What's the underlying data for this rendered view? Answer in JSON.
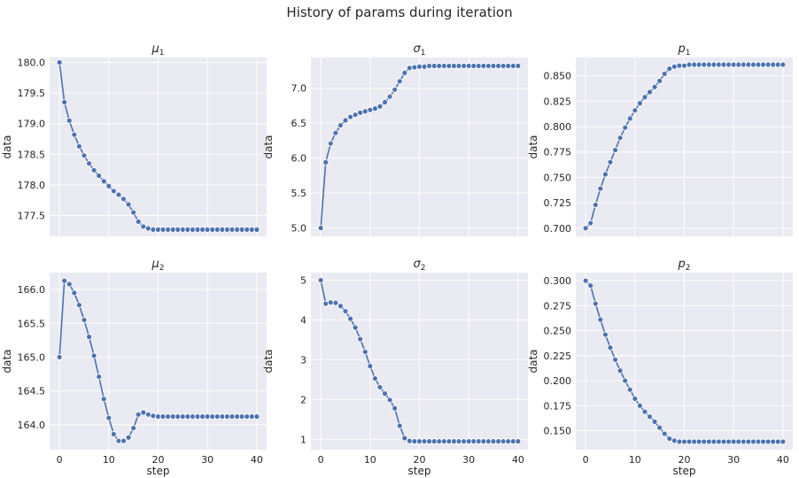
{
  "figure_title": "History of params during iteration",
  "chart_data": [
    {
      "type": "line",
      "title": "μ1",
      "title_base": "μ",
      "title_sub": "1",
      "xlabel": "",
      "ylabel": "data",
      "xlim": [
        -2,
        42
      ],
      "ylim": [
        177.16,
        180.08
      ],
      "xticks": [
        0,
        10,
        20,
        30,
        40
      ],
      "xticklabels_visible": false,
      "yticks": [
        177.5,
        178.0,
        178.5,
        179.0,
        179.5,
        180.0
      ],
      "yticklabels": [
        "177.5",
        "178.0",
        "178.5",
        "179.0",
        "179.5",
        "180.0"
      ],
      "color": "#4c72b0",
      "x": [
        0,
        1,
        2,
        3,
        4,
        5,
        6,
        7,
        8,
        9,
        10,
        11,
        12,
        13,
        14,
        15,
        16,
        17,
        18,
        19,
        20,
        21,
        22,
        23,
        24,
        25,
        26,
        27,
        28,
        29,
        30,
        31,
        32,
        33,
        34,
        35,
        36,
        37,
        38,
        39,
        40
      ],
      "values": [
        180.0,
        179.35,
        179.05,
        178.82,
        178.63,
        178.48,
        178.35,
        178.24,
        178.15,
        178.06,
        177.98,
        177.9,
        177.84,
        177.77,
        177.68,
        177.55,
        177.4,
        177.32,
        177.29,
        177.27,
        177.27,
        177.27,
        177.27,
        177.27,
        177.27,
        177.27,
        177.27,
        177.27,
        177.27,
        177.27,
        177.27,
        177.27,
        177.27,
        177.27,
        177.27,
        177.27,
        177.27,
        177.27,
        177.27,
        177.27,
        177.27
      ]
    },
    {
      "type": "line",
      "title": "σ1",
      "title_base": "σ",
      "title_sub": "1",
      "xlabel": "",
      "ylabel": "data",
      "xlim": [
        -2,
        42
      ],
      "ylim": [
        4.88,
        7.44
      ],
      "xticks": [
        0,
        10,
        20,
        30,
        40
      ],
      "xticklabels_visible": false,
      "yticks": [
        5.0,
        5.5,
        6.0,
        6.5,
        7.0
      ],
      "yticklabels": [
        "5.0",
        "5.5",
        "6.0",
        "6.5",
        "7.0"
      ],
      "color": "#4c72b0",
      "x": [
        0,
        1,
        2,
        3,
        4,
        5,
        6,
        7,
        8,
        9,
        10,
        11,
        12,
        13,
        14,
        15,
        16,
        17,
        18,
        19,
        20,
        21,
        22,
        23,
        24,
        25,
        26,
        27,
        28,
        29,
        30,
        31,
        32,
        33,
        34,
        35,
        36,
        37,
        38,
        39,
        40
      ],
      "values": [
        5.0,
        5.94,
        6.21,
        6.36,
        6.47,
        6.54,
        6.59,
        6.62,
        6.65,
        6.67,
        6.69,
        6.71,
        6.74,
        6.8,
        6.88,
        6.98,
        7.1,
        7.22,
        7.29,
        7.3,
        7.31,
        7.31,
        7.32,
        7.32,
        7.32,
        7.32,
        7.32,
        7.32,
        7.32,
        7.32,
        7.32,
        7.32,
        7.32,
        7.32,
        7.32,
        7.32,
        7.32,
        7.32,
        7.32,
        7.32,
        7.32
      ]
    },
    {
      "type": "line",
      "title": "p1",
      "title_base": "p",
      "title_sub": "1",
      "xlabel": "",
      "ylabel": "data",
      "xlim": [
        -2,
        42
      ],
      "ylim": [
        0.692,
        0.868
      ],
      "xticks": [
        0,
        10,
        20,
        30,
        40
      ],
      "xticklabels_visible": false,
      "yticks": [
        0.7,
        0.725,
        0.75,
        0.775,
        0.8,
        0.825,
        0.85
      ],
      "yticklabels": [
        "0.700",
        "0.725",
        "0.750",
        "0.775",
        "0.800",
        "0.825",
        "0.850"
      ],
      "color": "#4c72b0",
      "x": [
        0,
        1,
        2,
        3,
        4,
        5,
        6,
        7,
        8,
        9,
        10,
        11,
        12,
        13,
        14,
        15,
        16,
        17,
        18,
        19,
        20,
        21,
        22,
        23,
        24,
        25,
        26,
        27,
        28,
        29,
        30,
        31,
        32,
        33,
        34,
        35,
        36,
        37,
        38,
        39,
        40
      ],
      "values": [
        0.7,
        0.705,
        0.723,
        0.739,
        0.753,
        0.765,
        0.777,
        0.789,
        0.799,
        0.808,
        0.816,
        0.823,
        0.829,
        0.834,
        0.839,
        0.845,
        0.852,
        0.857,
        0.859,
        0.86,
        0.86,
        0.861,
        0.861,
        0.861,
        0.861,
        0.861,
        0.861,
        0.861,
        0.861,
        0.861,
        0.861,
        0.861,
        0.861,
        0.861,
        0.861,
        0.861,
        0.861,
        0.861,
        0.861,
        0.861,
        0.861
      ]
    },
    {
      "type": "line",
      "title": "μ2",
      "title_base": "μ",
      "title_sub": "2",
      "xlabel": "step",
      "ylabel": "data",
      "xlim": [
        -2,
        42
      ],
      "ylim": [
        163.63,
        166.25
      ],
      "xticks": [
        0,
        10,
        20,
        30,
        40
      ],
      "xticklabels_visible": true,
      "xticklabels": [
        "0",
        "10",
        "20",
        "30",
        "40"
      ],
      "yticks": [
        164.0,
        164.5,
        165.0,
        165.5,
        166.0
      ],
      "yticklabels": [
        "164.0",
        "164.5",
        "165.0",
        "165.5",
        "166.0"
      ],
      "color": "#4c72b0",
      "x": [
        0,
        1,
        2,
        3,
        4,
        5,
        6,
        7,
        8,
        9,
        10,
        11,
        12,
        13,
        14,
        15,
        16,
        17,
        18,
        19,
        20,
        21,
        22,
        23,
        24,
        25,
        26,
        27,
        28,
        29,
        30,
        31,
        32,
        33,
        34,
        35,
        36,
        37,
        38,
        39,
        40
      ],
      "values": [
        165.0,
        166.13,
        166.08,
        165.95,
        165.77,
        165.55,
        165.3,
        165.02,
        164.71,
        164.38,
        164.1,
        163.86,
        163.76,
        163.76,
        163.81,
        163.95,
        164.15,
        164.18,
        164.15,
        164.13,
        164.12,
        164.12,
        164.12,
        164.12,
        164.12,
        164.12,
        164.12,
        164.12,
        164.12,
        164.12,
        164.12,
        164.12,
        164.12,
        164.12,
        164.12,
        164.12,
        164.12,
        164.12,
        164.12,
        164.12,
        164.12
      ]
    },
    {
      "type": "line",
      "title": "σ2",
      "title_base": "σ",
      "title_sub": "2",
      "xlabel": "step",
      "ylabel": "data",
      "xlim": [
        -2,
        42
      ],
      "ylim": [
        0.74,
        5.19
      ],
      "xticks": [
        0,
        10,
        20,
        30,
        40
      ],
      "xticklabels_visible": true,
      "xticklabels": [
        "0",
        "10",
        "20",
        "30",
        "40"
      ],
      "yticks": [
        1,
        2,
        3,
        4,
        5
      ],
      "yticklabels": [
        "1",
        "2",
        "3",
        "4",
        "5"
      ],
      "color": "#4c72b0",
      "x": [
        0,
        1,
        2,
        3,
        4,
        5,
        6,
        7,
        8,
        9,
        10,
        11,
        12,
        13,
        14,
        15,
        16,
        17,
        18,
        19,
        20,
        21,
        22,
        23,
        24,
        25,
        26,
        27,
        28,
        29,
        30,
        31,
        32,
        33,
        34,
        35,
        36,
        37,
        38,
        39,
        40
      ],
      "values": [
        5.0,
        4.41,
        4.44,
        4.43,
        4.35,
        4.22,
        4.03,
        3.81,
        3.52,
        3.2,
        2.84,
        2.53,
        2.31,
        2.15,
        1.99,
        1.78,
        1.34,
        1.03,
        0.96,
        0.95,
        0.95,
        0.95,
        0.95,
        0.95,
        0.95,
        0.95,
        0.95,
        0.95,
        0.95,
        0.95,
        0.95,
        0.95,
        0.95,
        0.95,
        0.95,
        0.95,
        0.95,
        0.95,
        0.95,
        0.95,
        0.95
      ]
    },
    {
      "type": "line",
      "title": "p2",
      "title_base": "p",
      "title_sub": "2",
      "xlabel": "step",
      "ylabel": "data",
      "xlim": [
        -2,
        42
      ],
      "ylim": [
        0.131,
        0.308
      ],
      "xticks": [
        0,
        10,
        20,
        30,
        40
      ],
      "xticklabels_visible": true,
      "xticklabels": [
        "0",
        "10",
        "20",
        "30",
        "40"
      ],
      "yticks": [
        0.15,
        0.175,
        0.2,
        0.225,
        0.25,
        0.275,
        0.3
      ],
      "yticklabels": [
        "0.150",
        "0.175",
        "0.200",
        "0.225",
        "0.250",
        "0.275",
        "0.300"
      ],
      "color": "#4c72b0",
      "x": [
        0,
        1,
        2,
        3,
        4,
        5,
        6,
        7,
        8,
        9,
        10,
        11,
        12,
        13,
        14,
        15,
        16,
        17,
        18,
        19,
        20,
        21,
        22,
        23,
        24,
        25,
        26,
        27,
        28,
        29,
        30,
        31,
        32,
        33,
        34,
        35,
        36,
        37,
        38,
        39,
        40
      ],
      "values": [
        0.3,
        0.295,
        0.277,
        0.261,
        0.246,
        0.233,
        0.221,
        0.21,
        0.2,
        0.191,
        0.182,
        0.175,
        0.169,
        0.164,
        0.159,
        0.153,
        0.147,
        0.142,
        0.14,
        0.139,
        0.139,
        0.139,
        0.139,
        0.139,
        0.139,
        0.139,
        0.139,
        0.139,
        0.139,
        0.139,
        0.139,
        0.139,
        0.139,
        0.139,
        0.139,
        0.139,
        0.139,
        0.139,
        0.139,
        0.139,
        0.139
      ]
    }
  ]
}
